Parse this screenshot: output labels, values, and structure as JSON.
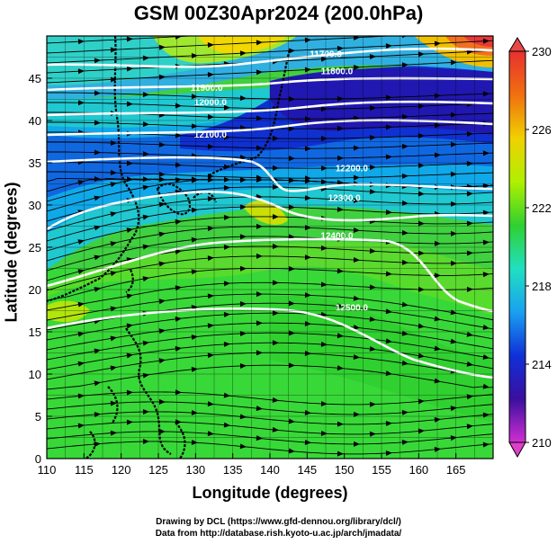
{
  "title": "GSM 00Z30Apr2024 (200.0hPa)",
  "x_axis": {
    "label": "Longitude (degrees)",
    "range": [
      110,
      170
    ],
    "ticks": [
      "110",
      "115",
      "120",
      "125",
      "130",
      "135",
      "140",
      "145",
      "150",
      "155",
      "160",
      "165"
    ]
  },
  "y_axis": {
    "label": "Latitude  (degrees)",
    "range": [
      0,
      50
    ],
    "ticks": [
      "0",
      "5",
      "10",
      "15",
      "20",
      "25",
      "30",
      "35",
      "40",
      "45"
    ]
  },
  "colorbar": {
    "range": [
      210,
      230
    ],
    "labels": [
      "230",
      "226",
      "222",
      "218",
      "214",
      "210"
    ],
    "colors": [
      "#d02fd0",
      "#3a0fa0",
      "#1030d8",
      "#1aa0f0",
      "#20e0c0",
      "#30d030",
      "#b0f000",
      "#f0d000",
      "#f07010",
      "#e83030"
    ]
  },
  "contours": [
    {
      "label": "11700.0",
      "pos": [
        147.5,
        47.5
      ]
    },
    {
      "label": "11800.0",
      "pos": [
        149,
        45.5
      ]
    },
    {
      "label": "11900.0",
      "pos": [
        131.5,
        43.5
      ]
    },
    {
      "label": "12000.0",
      "pos": [
        132,
        41.8
      ]
    },
    {
      "label": "12100.0",
      "pos": [
        132,
        38.0
      ]
    },
    {
      "label": "12200.0",
      "pos": [
        151,
        34.0
      ]
    },
    {
      "label": "12300.0",
      "pos": [
        150,
        30.5
      ]
    },
    {
      "label": "12400.0",
      "pos": [
        149,
        26.0
      ]
    },
    {
      "label": "12500.0",
      "pos": [
        151,
        17.5
      ]
    }
  ],
  "credits": [
    "Drawing by DCL (https://www.gfd-dennou.org/library/dcl/)",
    "Data from http://database.rish.kyoto-u.ac.jp/arch/jmadata/"
  ]
}
